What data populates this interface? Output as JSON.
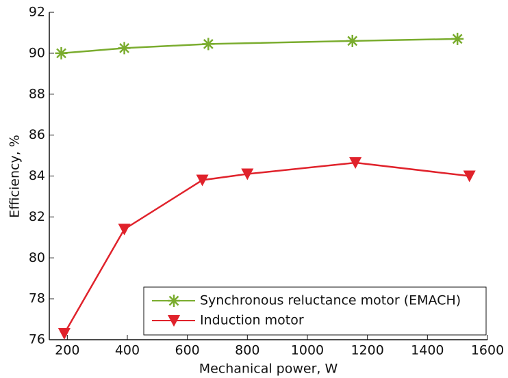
{
  "chart_data": {
    "type": "line",
    "xlabel": "Mechanical power, W",
    "ylabel": "Efficiency, %",
    "xlim": [
      140,
      1600
    ],
    "xticks": [
      200,
      400,
      600,
      800,
      1000,
      1200,
      1400,
      1600
    ],
    "ylim": [
      76,
      92
    ],
    "yticks": [
      76,
      78,
      80,
      82,
      84,
      86,
      88,
      90,
      92
    ],
    "legend": "lower right",
    "series": [
      {
        "name": "Synchronous reluctance motor (EMACH)",
        "color": "#7aac2e",
        "marker": "star",
        "x": [
          180,
          390,
          670,
          1150,
          1500
        ],
        "values": [
          90.0,
          90.25,
          90.45,
          90.6,
          90.7
        ]
      },
      {
        "name": "Induction motor",
        "color": "#e0222b",
        "marker": "triangle-down",
        "x": [
          190,
          390,
          650,
          800,
          1160,
          1540
        ],
        "values": [
          76.3,
          81.4,
          83.8,
          84.1,
          84.65,
          84.0
        ]
      }
    ]
  }
}
